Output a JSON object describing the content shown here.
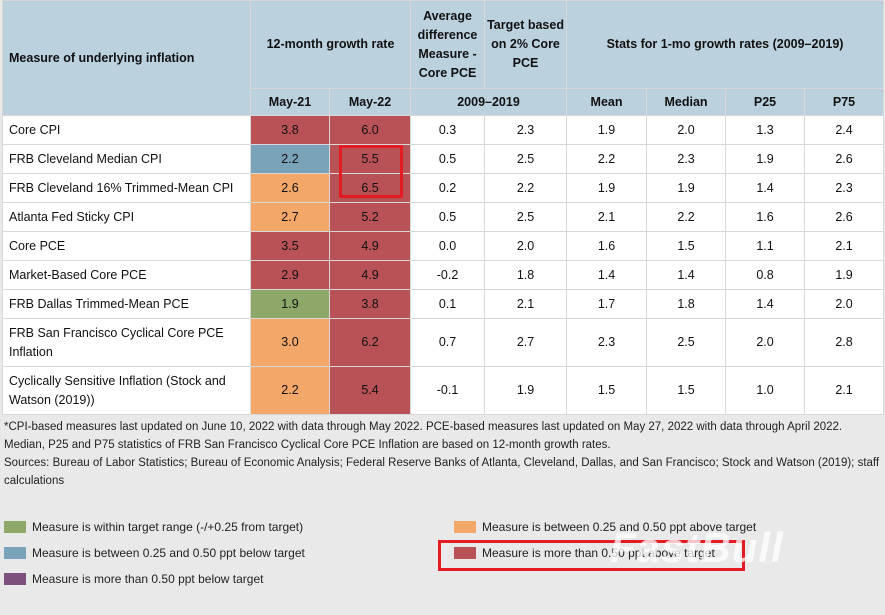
{
  "header": {
    "measure_label": "Measure of underlying inflation",
    "growth_label": "12-month growth rate",
    "avg_diff_label": "Average difference Measure - Core PCE",
    "target_label": "Target based on 2% Core PCE",
    "stats_label": "Stats for 1-mo growth rates (2009–2019)",
    "col_may21": "May-21",
    "col_may22": "May-22",
    "period": "2009–2019",
    "col_mean": "Mean",
    "col_median": "Median",
    "col_p25": "P25",
    "col_p75": "P75"
  },
  "rows": [
    {
      "measure": "Core CPI",
      "may21": "3.8",
      "may22": "6.0",
      "avg_diff": "0.3",
      "target": "2.3",
      "mean": "1.9",
      "median": "2.0",
      "p25": "1.3",
      "p75": "2.4",
      "c21": "red",
      "c22": "red"
    },
    {
      "measure": "FRB Cleveland Median CPI",
      "may21": "2.2",
      "may22": "5.5",
      "avg_diff": "0.5",
      "target": "2.5",
      "mean": "2.2",
      "median": "2.3",
      "p25": "1.9",
      "p75": "2.6",
      "c21": "blue",
      "c22": "red"
    },
    {
      "measure": "FRB Cleveland 16% Trimmed-Mean CPI",
      "may21": "2.6",
      "may22": "6.5",
      "avg_diff": "0.2",
      "target": "2.2",
      "mean": "1.9",
      "median": "1.9",
      "p25": "1.4",
      "p75": "2.3",
      "c21": "orange",
      "c22": "red"
    },
    {
      "measure": "Atlanta Fed Sticky CPI",
      "may21": "2.7",
      "may22": "5.2",
      "avg_diff": "0.5",
      "target": "2.5",
      "mean": "2.1",
      "median": "2.2",
      "p25": "1.6",
      "p75": "2.6",
      "c21": "orange",
      "c22": "red"
    },
    {
      "measure": "Core PCE",
      "may21": "3.5",
      "may22": "4.9",
      "avg_diff": "0.0",
      "target": "2.0",
      "mean": "1.6",
      "median": "1.5",
      "p25": "1.1",
      "p75": "2.1",
      "c21": "red",
      "c22": "red"
    },
    {
      "measure": "Market-Based Core PCE",
      "may21": "2.9",
      "may22": "4.9",
      "avg_diff": "-0.2",
      "target": "1.8",
      "mean": "1.4",
      "median": "1.4",
      "p25": "0.8",
      "p75": "1.9",
      "c21": "red",
      "c22": "red"
    },
    {
      "measure": "FRB Dallas Trimmed-Mean PCE",
      "may21": "1.9",
      "may22": "3.8",
      "avg_diff": "0.1",
      "target": "2.1",
      "mean": "1.7",
      "median": "1.8",
      "p25": "1.4",
      "p75": "2.0",
      "c21": "green",
      "c22": "red"
    },
    {
      "measure": "FRB San Francisco Cyclical Core PCE Inflation",
      "may21": "3.0",
      "may22": "6.2",
      "avg_diff": "0.7",
      "target": "2.7",
      "mean": "2.3",
      "median": "2.5",
      "p25": "2.0",
      "p75": "2.8",
      "c21": "orange",
      "c22": "red"
    },
    {
      "measure": "Cyclically Sensitive Inflation (Stock and Watson (2019))",
      "may21": "2.2",
      "may22": "5.4",
      "avg_diff": "-0.1",
      "target": "1.9",
      "mean": "1.5",
      "median": "1.5",
      "p25": "1.0",
      "p75": "2.1",
      "c21": "orange",
      "c22": "red"
    }
  ],
  "notes": {
    "line1": "*CPI-based measures last updated on June 10, 2022 with data through May 2022. PCE-based measures last updated on May 27, 2022 with data through April 2022.",
    "line2": "Median, P25 and P75 statistics of FRB San Francisco Cyclical Core PCE Inflation are based on 12-month growth rates.",
    "line3": "Sources: Bureau of Labor Statistics; Bureau of Economic Analysis; Federal Reserve Banks of Atlanta, Cleveland, Dallas, and San Francisco; Stock and Watson (2019); staff calculations"
  },
  "legend": {
    "green": "Measure is within target range (-/+0.25 from target)",
    "blue": "Measure is between 0.25 and 0.50 ppt below target",
    "purple": "Measure is more than 0.50 ppt below target",
    "orange": "Measure is between 0.25 and 0.50 ppt above target",
    "red": "Measure is more than 0.50 ppt above target"
  },
  "colors": {
    "green": "#8ea86a",
    "blue": "#7aa2b8",
    "orange": "#f3a86a",
    "red": "#b95257",
    "purple": "#7c4f7c",
    "header_bg": "#bcd1de",
    "highlight": "#e31c24"
  },
  "watermark": "FastBull"
}
